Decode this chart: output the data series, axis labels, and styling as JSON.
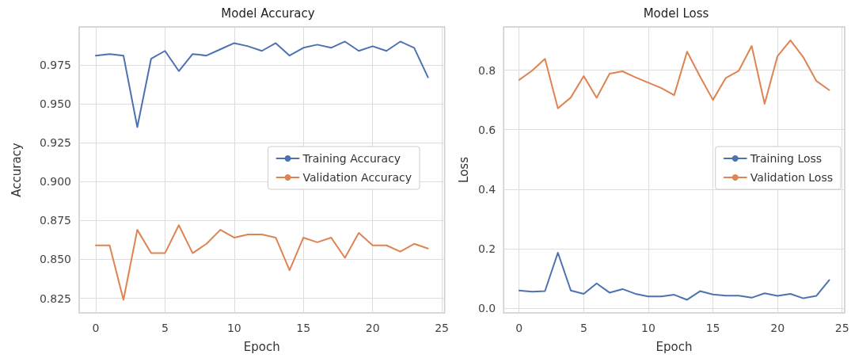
{
  "chart_data": [
    {
      "type": "line",
      "title": "Model Accuracy",
      "xlabel": "Epoch",
      "ylabel": "Accuracy",
      "x": [
        0,
        1,
        2,
        3,
        4,
        5,
        6,
        7,
        8,
        9,
        10,
        11,
        12,
        13,
        14,
        15,
        16,
        17,
        18,
        19,
        20,
        21,
        22,
        23,
        24
      ],
      "series": [
        {
          "name": "Training Accuracy",
          "color": "#4c72b0",
          "values": [
            0.981,
            0.982,
            0.981,
            0.935,
            0.979,
            0.984,
            0.971,
            0.982,
            0.981,
            0.985,
            0.989,
            0.987,
            0.984,
            0.989,
            0.981,
            0.986,
            0.988,
            0.986,
            0.99,
            0.984,
            0.987,
            0.984,
            0.99,
            0.986,
            0.967
          ]
        },
        {
          "name": "Validation Accuracy",
          "color": "#dd8452",
          "values": [
            0.859,
            0.859,
            0.824,
            0.869,
            0.854,
            0.854,
            0.872,
            0.854,
            0.86,
            0.869,
            0.864,
            0.866,
            0.866,
            0.864,
            0.843,
            0.864,
            0.861,
            0.864,
            0.851,
            0.867,
            0.859,
            0.859,
            0.855,
            0.86,
            0.857
          ]
        }
      ],
      "xlim": [
        -1.2,
        25.2
      ],
      "xticks": [
        0,
        5,
        10,
        15,
        20,
        25
      ],
      "ylim": [
        0.8156,
        0.9994
      ],
      "yticks": [
        0.825,
        {
          "value": 0.85,
          "label": "0.850"
        },
        0.875,
        {
          "value": 0.9,
          "label": "0.900"
        },
        0.925,
        {
          "value": 0.95,
          "label": "0.950"
        },
        0.975
      ],
      "grid": true,
      "legend": "right"
    },
    {
      "type": "line",
      "title": "Model Loss",
      "xlabel": "Epoch",
      "ylabel": "Loss",
      "x": [
        0,
        1,
        2,
        3,
        4,
        5,
        6,
        7,
        8,
        9,
        10,
        11,
        12,
        13,
        14,
        15,
        16,
        17,
        18,
        19,
        20,
        21,
        22,
        23,
        24
      ],
      "series": [
        {
          "name": "Training Loss",
          "color": "#4c72b0",
          "values": [
            0.06,
            0.056,
            0.058,
            0.187,
            0.06,
            0.049,
            0.084,
            0.053,
            0.065,
            0.049,
            0.04,
            0.04,
            0.046,
            0.029,
            0.058,
            0.047,
            0.043,
            0.043,
            0.036,
            0.051,
            0.042,
            0.049,
            0.034,
            0.042,
            0.095
          ]
        },
        {
          "name": "Validation Loss",
          "color": "#dd8452",
          "values": [
            0.767,
            0.798,
            0.838,
            0.672,
            0.708,
            0.78,
            0.707,
            0.788,
            0.796,
            0.776,
            0.758,
            0.74,
            0.716,
            0.862,
            0.779,
            0.7,
            0.774,
            0.798,
            0.881,
            0.687,
            0.847,
            0.9,
            0.843,
            0.764,
            0.733
          ]
        }
      ],
      "xlim": [
        -1.2,
        25.2
      ],
      "xticks": [
        0,
        5,
        10,
        15,
        20,
        25
      ],
      "ylim": [
        -0.015,
        0.945
      ],
      "yticks": [
        {
          "value": 0,
          "label": "0.0"
        },
        0.2,
        0.4,
        0.6,
        0.8
      ],
      "grid": true,
      "legend": "right"
    }
  ]
}
